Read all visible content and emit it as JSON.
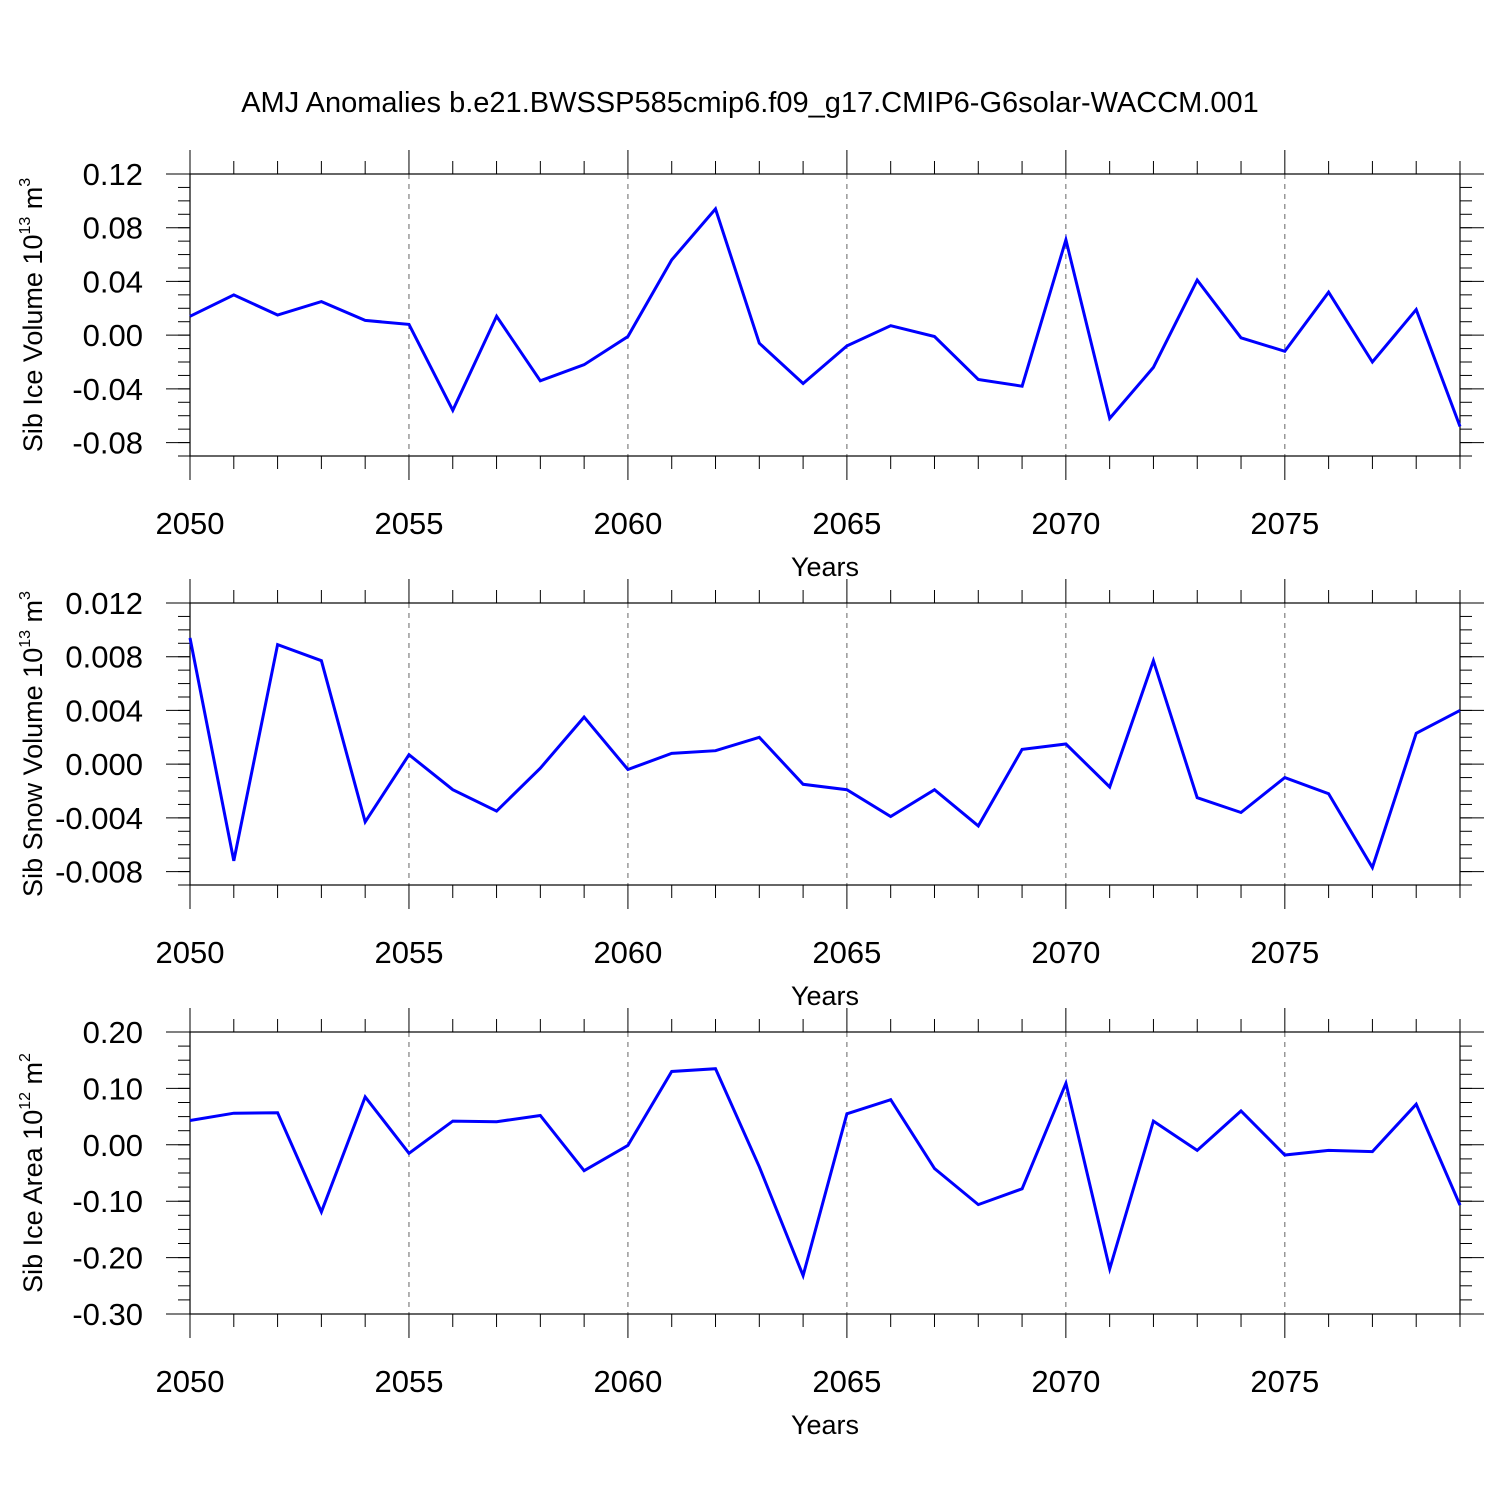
{
  "title": "AMJ Anomalies b.e21.BWSSP585cmip6.f09_g17.CMIP6-G6solar-WACCM.001",
  "line_color": "#0000ff",
  "chart_data": [
    {
      "type": "line",
      "title": "",
      "xlabel": "Years",
      "ylabel_main": "Sib Ice Volume 10",
      "ylabel_exp": "13",
      "ylabel_unit": " m",
      "ylabel_unit_exp": "3",
      "xlim": [
        2050,
        2079
      ],
      "ylim": [
        -0.09,
        0.12
      ],
      "xticks": [
        2050,
        2055,
        2060,
        2065,
        2070,
        2075
      ],
      "xtick_labels": [
        "2050",
        "2055",
        "2060",
        "2065",
        "2070",
        "2075"
      ],
      "yticks": [
        0.12,
        0.08,
        0.04,
        0.0,
        -0.04,
        -0.08
      ],
      "ytick_labels": [
        "0.12",
        "0.08",
        "0.04",
        "0.00",
        "-0.04",
        "-0.08"
      ],
      "x": [
        2050,
        2051,
        2052,
        2053,
        2054,
        2055,
        2056,
        2057,
        2058,
        2059,
        2060,
        2061,
        2062,
        2063,
        2064,
        2065,
        2066,
        2067,
        2068,
        2069,
        2070,
        2071,
        2072,
        2073,
        2074,
        2075,
        2076,
        2077,
        2078,
        2079
      ],
      "series": [
        {
          "name": "Sib Ice Volume",
          "values": [
            0.014,
            0.03,
            0.015,
            0.025,
            0.011,
            0.008,
            -0.056,
            0.014,
            -0.034,
            -0.022,
            -0.001,
            0.056,
            0.094,
            -0.006,
            -0.036,
            -0.008,
            0.007,
            -0.001,
            -0.033,
            -0.038,
            0.071,
            -0.062,
            -0.024,
            0.041,
            -0.002,
            -0.012,
            0.032,
            -0.02,
            0.019,
            -0.068
          ]
        }
      ]
    },
    {
      "type": "line",
      "title": "",
      "xlabel": "Years",
      "ylabel_main": "Sib Snow Volume 10",
      "ylabel_exp": "13",
      "ylabel_unit": " m",
      "ylabel_unit_exp": "3",
      "xlim": [
        2050,
        2079
      ],
      "ylim": [
        -0.009,
        0.012
      ],
      "xticks": [
        2050,
        2055,
        2060,
        2065,
        2070,
        2075
      ],
      "xtick_labels": [
        "2050",
        "2055",
        "2060",
        "2065",
        "2070",
        "2075"
      ],
      "yticks": [
        0.012,
        0.008,
        0.004,
        0.0,
        -0.004,
        -0.008
      ],
      "ytick_labels": [
        "0.012",
        "0.008",
        "0.004",
        "0.000",
        "-0.004",
        "-0.008"
      ],
      "x": [
        2050,
        2051,
        2052,
        2053,
        2054,
        2055,
        2056,
        2057,
        2058,
        2059,
        2060,
        2061,
        2062,
        2063,
        2064,
        2065,
        2066,
        2067,
        2068,
        2069,
        2070,
        2071,
        2072,
        2073,
        2074,
        2075,
        2076,
        2077,
        2078,
        2079
      ],
      "series": [
        {
          "name": "Sib Snow Volume",
          "values": [
            0.0094,
            -0.0072,
            0.0089,
            0.0077,
            -0.0043,
            0.0007,
            -0.0019,
            -0.0035,
            -0.0003,
            0.0035,
            -0.0004,
            0.0008,
            0.001,
            0.002,
            -0.0015,
            -0.0019,
            -0.0039,
            -0.0019,
            -0.0046,
            0.0011,
            0.0015,
            -0.0017,
            0.0077,
            -0.0025,
            -0.0036,
            -0.001,
            -0.0022,
            -0.0077,
            0.0023,
            0.004
          ]
        }
      ]
    },
    {
      "type": "line",
      "title": "",
      "xlabel": "Years",
      "ylabel_main": "Sib Ice Area 10",
      "ylabel_exp": "12",
      "ylabel_unit": " m",
      "ylabel_unit_exp": "2",
      "xlim": [
        2050,
        2079
      ],
      "ylim": [
        -0.3,
        0.2
      ],
      "xticks": [
        2050,
        2055,
        2060,
        2065,
        2070,
        2075
      ],
      "xtick_labels": [
        "2050",
        "2055",
        "2060",
        "2065",
        "2070",
        "2075"
      ],
      "yticks": [
        0.2,
        0.1,
        0.0,
        -0.1,
        -0.2,
        -0.3
      ],
      "ytick_labels": [
        "0.20",
        "0.10",
        "0.00",
        "-0.10",
        "-0.20",
        "-0.30"
      ],
      "x": [
        2050,
        2051,
        2052,
        2053,
        2054,
        2055,
        2056,
        2057,
        2058,
        2059,
        2060,
        2061,
        2062,
        2063,
        2064,
        2065,
        2066,
        2067,
        2068,
        2069,
        2070,
        2071,
        2072,
        2073,
        2074,
        2075,
        2076,
        2077,
        2078,
        2079
      ],
      "series": [
        {
          "name": "Sib Ice Area",
          "values": [
            0.043,
            0.056,
            0.057,
            -0.119,
            0.085,
            -0.015,
            0.042,
            0.041,
            0.052,
            -0.046,
            -0.001,
            0.13,
            0.135,
            -0.039,
            -0.232,
            0.055,
            0.08,
            -0.042,
            -0.106,
            -0.078,
            0.109,
            -0.22,
            0.042,
            -0.01,
            0.06,
            -0.018,
            -0.01,
            -0.012,
            0.072,
            -0.107
          ]
        }
      ]
    }
  ]
}
